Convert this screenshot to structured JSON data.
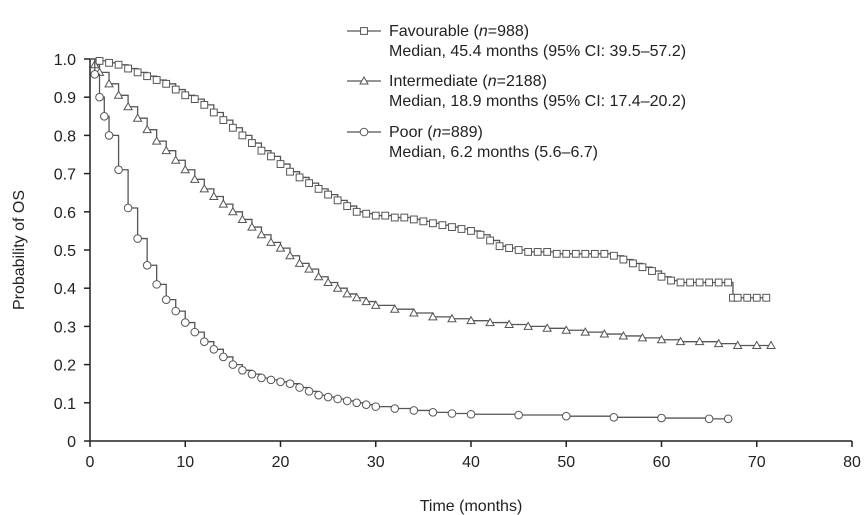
{
  "chart_data": {
    "type": "line",
    "title": "",
    "xlabel": "Time (months)",
    "ylabel": "Probability of OS",
    "xlim": [
      0,
      80
    ],
    "ylim": [
      0,
      1.0
    ],
    "x_ticks": [
      0,
      10,
      20,
      30,
      40,
      50,
      60,
      70,
      80
    ],
    "y_ticks": [
      0,
      0.1,
      0.2,
      0.3,
      0.4,
      0.5,
      0.6,
      0.7,
      0.8,
      0.9,
      1.0
    ],
    "x_tick_labels": [
      "0",
      "10",
      "20",
      "30",
      "40",
      "50",
      "60",
      "70",
      "80"
    ],
    "y_tick_labels": [
      "0",
      "0.1",
      "0.2",
      "0.3",
      "0.4",
      "0.5",
      "0.6",
      "0.7",
      "0.8",
      "0.9",
      "1.0"
    ],
    "grid": false,
    "legend_position": "top-center",
    "series": [
      {
        "name": "Favourable",
        "n_label": "n",
        "n_value": "=988",
        "median_label": "Median, 45.4 months (95% CI: 39.5–57.2)",
        "marker": "square",
        "color": "#555555",
        "x": [
          0,
          1,
          2,
          3,
          4,
          5,
          6,
          7,
          8,
          9,
          10,
          11,
          12,
          13,
          14,
          15,
          16,
          17,
          18,
          19,
          20,
          21,
          22,
          23,
          24,
          25,
          26,
          27,
          28,
          29,
          30,
          31,
          32,
          33,
          34,
          35,
          36,
          37,
          38,
          39,
          40,
          41,
          42,
          43,
          44,
          45,
          46,
          47,
          48,
          49,
          50,
          51,
          52,
          53,
          54,
          55,
          56,
          57,
          58,
          59,
          60,
          61,
          62,
          63,
          64,
          65,
          66,
          67,
          67.5,
          68,
          69,
          70,
          71
        ],
        "y": [
          1.0,
          0.995,
          0.99,
          0.985,
          0.975,
          0.965,
          0.955,
          0.945,
          0.935,
          0.92,
          0.905,
          0.895,
          0.88,
          0.86,
          0.84,
          0.82,
          0.8,
          0.78,
          0.76,
          0.745,
          0.725,
          0.705,
          0.69,
          0.675,
          0.66,
          0.645,
          0.63,
          0.615,
          0.6,
          0.595,
          0.59,
          0.59,
          0.585,
          0.585,
          0.58,
          0.575,
          0.57,
          0.565,
          0.56,
          0.555,
          0.55,
          0.54,
          0.525,
          0.51,
          0.505,
          0.5,
          0.495,
          0.495,
          0.495,
          0.49,
          0.49,
          0.49,
          0.49,
          0.49,
          0.49,
          0.485,
          0.475,
          0.465,
          0.455,
          0.445,
          0.43,
          0.42,
          0.415,
          0.415,
          0.415,
          0.415,
          0.415,
          0.415,
          0.375,
          0.375,
          0.375,
          0.375,
          0.375
        ]
      },
      {
        "name": "Intermediate",
        "n_label": "n",
        "n_value": "=2188",
        "median_label": "Median, 18.9 months (95% CI: 17.4–20.2)",
        "marker": "triangle",
        "color": "#555555",
        "x": [
          0,
          0.5,
          1,
          2,
          3,
          4,
          5,
          6,
          7,
          8,
          9,
          10,
          11,
          12,
          13,
          14,
          15,
          16,
          17,
          18,
          19,
          20,
          21,
          22,
          23,
          24,
          25,
          26,
          27,
          28,
          29,
          30,
          32,
          34,
          36,
          38,
          40,
          42,
          44,
          46,
          48,
          50,
          52,
          54,
          56,
          58,
          60,
          62,
          64,
          66,
          68,
          70,
          71.5
        ],
        "y": [
          1.0,
          0.985,
          0.965,
          0.935,
          0.905,
          0.875,
          0.845,
          0.815,
          0.785,
          0.76,
          0.735,
          0.71,
          0.685,
          0.66,
          0.64,
          0.62,
          0.6,
          0.58,
          0.56,
          0.54,
          0.52,
          0.505,
          0.485,
          0.465,
          0.45,
          0.43,
          0.415,
          0.4,
          0.385,
          0.375,
          0.365,
          0.355,
          0.345,
          0.335,
          0.325,
          0.32,
          0.315,
          0.31,
          0.305,
          0.3,
          0.295,
          0.29,
          0.285,
          0.28,
          0.275,
          0.27,
          0.265,
          0.26,
          0.26,
          0.255,
          0.25,
          0.25,
          0.25
        ]
      },
      {
        "name": "Poor",
        "n_label": "n",
        "n_value": "=889",
        "median_label": "Median, 6.2 months (5.6–6.7)",
        "marker": "circle",
        "color": "#555555",
        "x": [
          0,
          0.5,
          1,
          1.5,
          2,
          3,
          4,
          5,
          6,
          7,
          8,
          9,
          10,
          11,
          12,
          13,
          14,
          15,
          16,
          17,
          18,
          19,
          20,
          21,
          22,
          23,
          24,
          25,
          26,
          27,
          28,
          29,
          30,
          32,
          34,
          36,
          38,
          40,
          45,
          50,
          55,
          60,
          65,
          67
        ],
        "y": [
          1.0,
          0.96,
          0.9,
          0.85,
          0.8,
          0.71,
          0.61,
          0.53,
          0.46,
          0.41,
          0.37,
          0.34,
          0.31,
          0.285,
          0.26,
          0.24,
          0.22,
          0.2,
          0.185,
          0.175,
          0.165,
          0.16,
          0.155,
          0.15,
          0.14,
          0.13,
          0.12,
          0.115,
          0.11,
          0.105,
          0.1,
          0.095,
          0.09,
          0.085,
          0.08,
          0.075,
          0.072,
          0.07,
          0.068,
          0.065,
          0.062,
          0.06,
          0.058,
          0.058
        ]
      }
    ]
  }
}
